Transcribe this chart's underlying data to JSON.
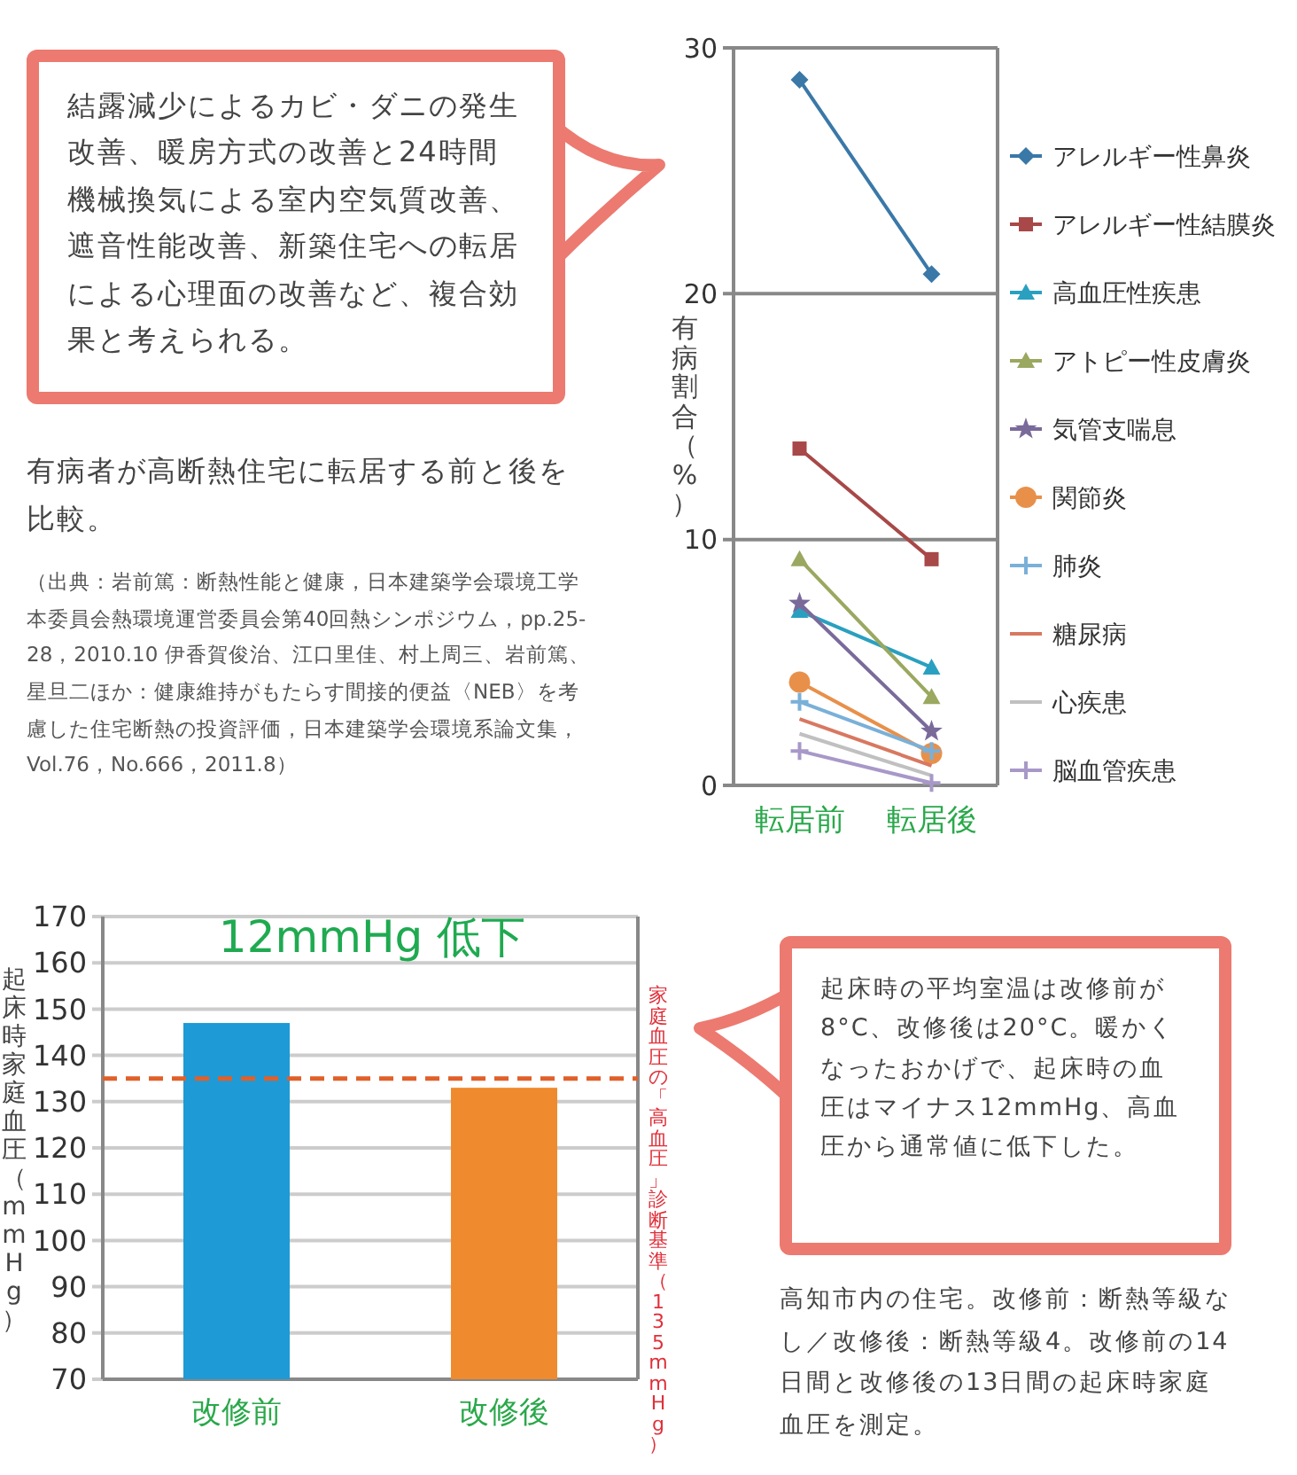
{
  "chart_data": [
    {
      "type": "line",
      "ylabel": "有病割合（%）",
      "categories": [
        "転居前",
        "転居後"
      ],
      "ylim": [
        0,
        30
      ],
      "yticks": [
        0,
        10,
        20,
        30
      ],
      "grid": "y",
      "legend": "right",
      "series": [
        {
          "name": "アレルギー性鼻炎",
          "color": "#3a78a8",
          "marker": "diamond",
          "values": [
            28.7,
            20.8
          ]
        },
        {
          "name": "アレルギー性結膜炎",
          "color": "#a84848",
          "marker": "square",
          "values": [
            13.7,
            9.2
          ]
        },
        {
          "name": "高血圧性疾患",
          "color": "#2aa0c0",
          "marker": "triangle",
          "values": [
            7.1,
            4.8
          ]
        },
        {
          "name": "アトピー性皮膚炎",
          "color": "#9aa860",
          "marker": "triangle",
          "values": [
            9.2,
            3.6
          ]
        },
        {
          "name": "気管支喘息",
          "color": "#7a6a9a",
          "marker": "star",
          "values": [
            7.4,
            2.2
          ]
        },
        {
          "name": "関節炎",
          "color": "#e8904a",
          "marker": "circle",
          "values": [
            4.2,
            1.3
          ]
        },
        {
          "name": "肺炎",
          "color": "#7ab0d8",
          "marker": "cross",
          "values": [
            3.4,
            1.4
          ]
        },
        {
          "name": "糖尿病",
          "color": "#d87860",
          "marker": "none",
          "values": [
            2.7,
            0.8
          ]
        },
        {
          "name": "心疾患",
          "color": "#c0c0c0",
          "marker": "none",
          "values": [
            2.1,
            0.4
          ]
        },
        {
          "name": "脳血管疾患",
          "color": "#a898c8",
          "marker": "cross",
          "values": [
            1.4,
            0.1
          ]
        }
      ],
      "annotations": [
        "結露減少によるカビ・ダニの発生改善、暖房方式の改善と24時間機械換気による室内空気質改善、遮音性能改善、新築住宅への転居による心理面の改善など、複合効果と考えられる。",
        "有病者が高断熱住宅に転居する前と後を比較。",
        "（出典：岩前篤：断熱性能と健康，日本建築学会環境工学本委員会熱環境運営委員会第40回熱シンポジウム，pp.25-28，2010.10 伊香賀俊治、江口里佳、村上周三、岩前篤、星旦二ほか：健康維持がもたらす間接的便益〈NEB〉を考慮した住宅断熱の投資評価，日本建築学会環境系論文集，Vol.76，No.666，2011.8）"
      ]
    },
    {
      "type": "bar",
      "ylabel": "起床時家庭血圧（mmHg）",
      "categories": [
        "改修前",
        "改修後"
      ],
      "values": [
        147,
        133
      ],
      "colors": [
        "#1e9ad6",
        "#ef8a2e"
      ],
      "ylim": [
        70,
        170
      ],
      "yticks": [
        70,
        80,
        90,
        100,
        110,
        120,
        130,
        140,
        150,
        160,
        170
      ],
      "grid": "y",
      "ref_lines": [
        {
          "axis": "y",
          "value": 135,
          "label": "家庭血圧の「高血圧」診断基準（135mmHg）",
          "color": "#e0602a",
          "line_style": "dashed"
        }
      ],
      "annotations": [
        "12mmHg 低下",
        "起床時の平均室温は改修前が8°C、改修後は20°C。暖かくなったおかげで、起床時の血圧はマイナス12mmHg、高血圧から通常値に低下した。",
        "高知市内の住宅。改修前：断熱等級なし／改修後：断熱等級4。改修前の14日間と改修後の13日間の起床時家庭血圧を測定。"
      ]
    }
  ]
}
